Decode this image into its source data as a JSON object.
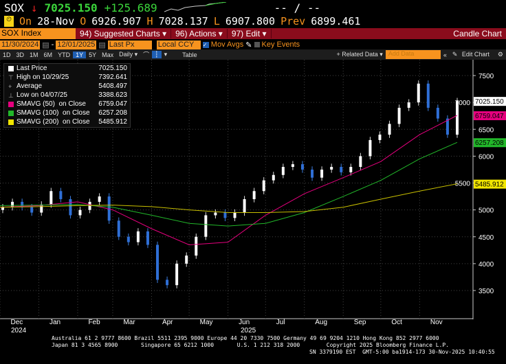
{
  "ticker": {
    "symbol": "SOX",
    "direction_icon": "down-arrow",
    "price": "7025.150",
    "change": "+125.689",
    "bidask": "-- / --"
  },
  "quote": {
    "on_label": "On",
    "date": "28-Nov",
    "o_label": "O",
    "open": "6926.907",
    "h_label": "H",
    "high": "7028.137",
    "l_label": "L",
    "low": "6907.800",
    "prev_label": "Prev",
    "prev": "6899.461"
  },
  "menu": {
    "security": "SOX Index",
    "suggested": "94) Suggested Charts ▾",
    "actions": "96) Actions ▾",
    "edit": "97) Edit ▾",
    "chart_type": "Candle Chart"
  },
  "params": {
    "start": "11/30/2024",
    "end": "12/01/2025",
    "field": "Last Px",
    "currency": "Local CCY ▾",
    "mov_avgs": "Mov Avgs",
    "key_events": "Key Events"
  },
  "toolbar": {
    "ranges": [
      "1D",
      "3D",
      "1M",
      "6M",
      "YTD",
      "1Y",
      "5Y",
      "Max"
    ],
    "selected": "1Y",
    "period": "Daily ▾",
    "table": "Table",
    "related": "+ Related Data ▾",
    "add_data_placeholder": "Add Data",
    "edit_chart": "Edit Chart"
  },
  "legend": [
    {
      "label": "Last Price",
      "value": "7025.150",
      "color": "#ffffff"
    },
    {
      "label": "High on 10/29/25",
      "value": "7392.641"
    },
    {
      "label": "Average",
      "value": "5408.497"
    },
    {
      "label": "Low on 04/07/25",
      "value": "3388.623"
    },
    {
      "label": "SMAVG (50)  on Close",
      "value": "6759.047",
      "color": "#e6007e"
    },
    {
      "label": "SMAVG (100)  on Close",
      "value": "6257.208",
      "color": "#22b82a"
    },
    {
      "label": "SMAVG (200)  on Close",
      "value": "5485.912",
      "color": "#f2e600"
    }
  ],
  "chart_data": {
    "type": "candlestick",
    "yticks": [
      3500,
      4000,
      4500,
      5000,
      5500,
      6000,
      6500,
      7000,
      7500
    ],
    "ylim": [
      3000,
      7700
    ],
    "xticks": [
      "Dec",
      "Jan",
      "Feb",
      "Mar",
      "Apr",
      "May",
      "Jun",
      "Jul",
      "Aug",
      "Sep",
      "Oct",
      "Nov"
    ],
    "xyears": [
      "2024",
      "2025"
    ],
    "weekly_close": [
      5050,
      5150,
      5050,
      4950,
      5100,
      5350,
      5200,
      4900,
      5000,
      5150,
      5250,
      4800,
      4500,
      4400,
      4600,
      4350,
      3700,
      3600,
      4000,
      4150,
      4500,
      4900,
      4950,
      4850,
      4950,
      5200,
      5350,
      5550,
      5650,
      5800,
      5850,
      5750,
      5600,
      5750,
      5800,
      5700,
      5800,
      6000,
      6300,
      6400,
      6600,
      6900,
      7000,
      7350,
      6900,
      6700,
      6400,
      7025
    ],
    "ma_dates": [
      "2024-12-01",
      "2025-01-01",
      "2025-02-01",
      "2025-03-01",
      "2025-04-01",
      "2025-05-01",
      "2025-06-01",
      "2025-07-01",
      "2025-08-01",
      "2025-09-01",
      "2025-10-01",
      "2025-11-01",
      "2025-12-01"
    ],
    "series": [
      {
        "name": "SMAVG (50)",
        "color": "#e6007e",
        "values": [
          5050,
          5080,
          5150,
          5000,
          4650,
          4350,
          4400,
          4900,
          5300,
          5600,
          5900,
          6400,
          6759
        ]
      },
      {
        "name": "SMAVG (100)",
        "color": "#22b82a",
        "values": [
          5080,
          5090,
          5100,
          5050,
          4900,
          4750,
          4700,
          4750,
          4950,
          5250,
          5550,
          5950,
          6257
        ]
      },
      {
        "name": "SMAVG (200)",
        "color": "#c9c000",
        "values": [
          5050,
          5060,
          5080,
          5090,
          5060,
          5000,
          4950,
          4950,
          4970,
          5050,
          5200,
          5350,
          5486
        ]
      }
    ],
    "last_tags": [
      {
        "value": "7025.150",
        "color": "#ffffff"
      },
      {
        "value": "6759.047",
        "color": "#e6007e"
      },
      {
        "value": "6257.208",
        "color": "#22b82a"
      },
      {
        "value": "5485.912",
        "color": "#f2e600"
      }
    ]
  },
  "footer": {
    "line1": "Australia 61 2 9777 8600 Brazil 5511 2395 9000 Europe 44 20 7330 7500 Germany 49 69 9204 1210 Hong Kong 852 2977 6000",
    "line2": "Japan 81 3 4565 8900       Singapore 65 6212 1000       U.S. 1 212 318 2000        Copyright 2025 Bloomberg Finance L.P.",
    "line3": "SN 3379190 EST  GMT-5:00 ba1914-173 30-Nov-2025 10:40:55"
  }
}
